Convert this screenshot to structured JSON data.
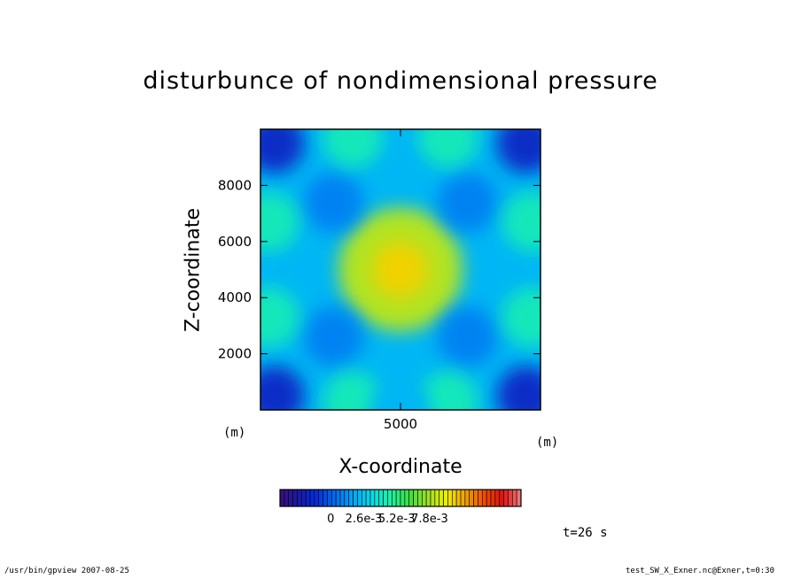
{
  "chart_data": {
    "type": "heatmap",
    "title": "disturbunce of nondimensional pressure",
    "xlabel": "X-coordinate",
    "ylabel": "Z-coordinate",
    "x_unit": "(m)",
    "y_unit": "(m)",
    "xlim": [
      0,
      10000
    ],
    "ylim": [
      0,
      10000
    ],
    "x_ticks": [
      {
        "value": 5000,
        "label": "5000"
      }
    ],
    "y_ticks": [
      {
        "value": 2000,
        "label": "2000"
      },
      {
        "value": 4000,
        "label": "4000"
      },
      {
        "value": 6000,
        "label": "6000"
      },
      {
        "value": 8000,
        "label": "8000"
      }
    ],
    "colorbar": {
      "labels": [
        "0",
        "2.6e-3",
        "5.2e-3",
        "7.8e-3"
      ],
      "values": [
        0,
        0.0026,
        0.0052,
        0.0078
      ],
      "range": [
        -0.004,
        0.015
      ]
    },
    "field_features": [
      {
        "x": 5000,
        "z": 5000,
        "level": 0.0082,
        "note": "central maximum"
      },
      {
        "x": 500,
        "z": 500,
        "level": -0.0018
      },
      {
        "x": 9500,
        "z": 500,
        "level": -0.0018
      },
      {
        "x": 500,
        "z": 9500,
        "level": -0.0018
      },
      {
        "x": 9500,
        "z": 9500,
        "level": -0.0018
      },
      {
        "x": 2600,
        "z": 2600,
        "level": 0.0008
      },
      {
        "x": 7400,
        "z": 2600,
        "level": 0.0008
      },
      {
        "x": 2600,
        "z": 7400,
        "level": 0.0008
      },
      {
        "x": 7400,
        "z": 7400,
        "level": 0.0008
      },
      {
        "x": 3300,
        "z": 300,
        "level": 0.0043
      },
      {
        "x": 6700,
        "z": 300,
        "level": 0.0043
      },
      {
        "x": 3300,
        "z": 9700,
        "level": 0.0043
      },
      {
        "x": 6700,
        "z": 9700,
        "level": 0.0043
      },
      {
        "x": 300,
        "z": 3300,
        "level": 0.0043
      },
      {
        "x": 300,
        "z": 6700,
        "level": 0.0043
      },
      {
        "x": 9700,
        "z": 3300,
        "level": 0.0043
      },
      {
        "x": 9700,
        "z": 6700,
        "level": 0.0043
      },
      {
        "x": 5000,
        "z": 0,
        "level": 0.0022
      }
    ],
    "background_level": 0.0022
  },
  "annotations": {
    "time": "t=26 s",
    "footer_left": "/usr/bin/gpview   2007-08-25",
    "footer_right": "test_SW_X_Exner.nc@Exner,t=0:30"
  },
  "colors": {
    "colormap": [
      "#3a1078",
      "#1a1aa8",
      "#0030e0",
      "#0070f0",
      "#00a8f8",
      "#00e0e8",
      "#20f0a0",
      "#40e040",
      "#a0e020",
      "#f0f000",
      "#f0a000",
      "#f05000",
      "#e01010",
      "#f08080"
    ]
  }
}
